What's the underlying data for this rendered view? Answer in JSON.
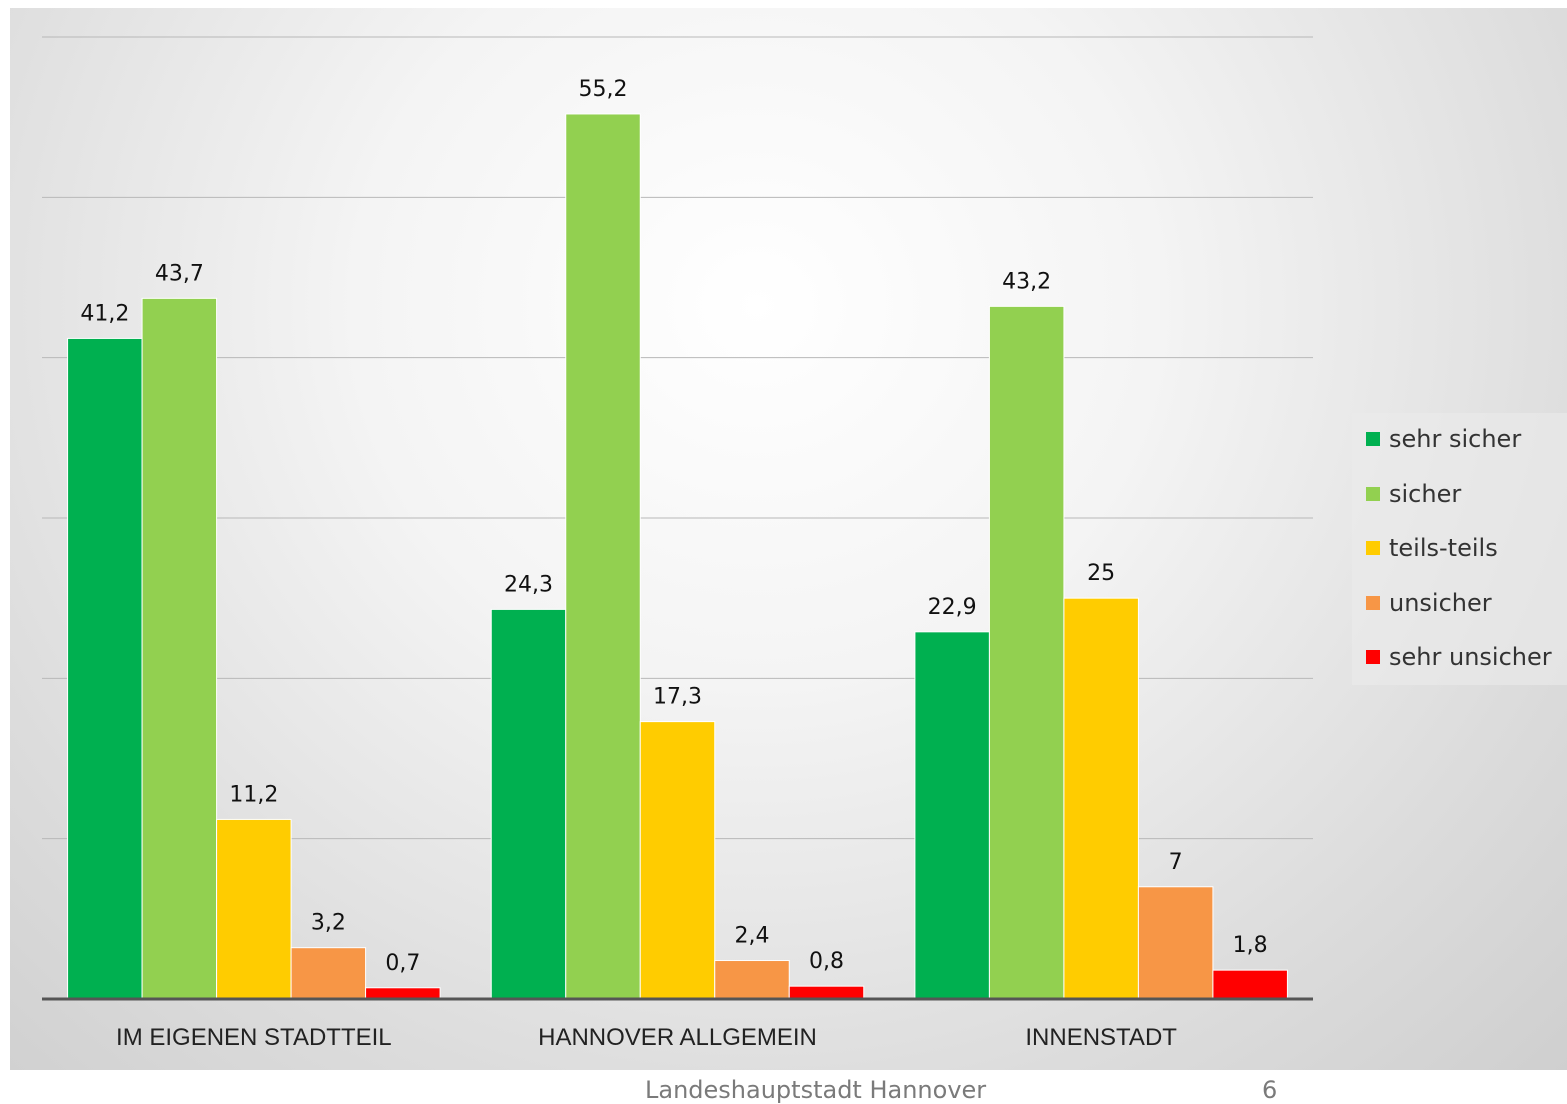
{
  "chart_data": {
    "type": "bar",
    "categories": [
      "IM EIGENEN STADTTEIL",
      "HANNOVER ALLGEMEIN",
      "INNENSTADT"
    ],
    "series": [
      {
        "name": "sehr sicher",
        "color": "#00b050",
        "values": [
          41.2,
          24.3,
          22.9
        ],
        "labels": [
          "41,2",
          "24,3",
          "22,9"
        ]
      },
      {
        "name": "sicher",
        "color": "#92d050",
        "values": [
          43.7,
          55.2,
          43.2
        ],
        "labels": [
          "43,7",
          "55,2",
          "43,2"
        ]
      },
      {
        "name": "teils-teils",
        "color": "#ffcc00",
        "values": [
          11.2,
          17.3,
          25
        ],
        "labels": [
          "11,2",
          "17,3",
          "25"
        ]
      },
      {
        "name": "unsicher",
        "color": "#f79646",
        "values": [
          3.2,
          2.4,
          7
        ],
        "labels": [
          "3,2",
          "2,4",
          "7"
        ]
      },
      {
        "name": "sehr unsicher",
        "color": "#ff0000",
        "values": [
          0.7,
          0.8,
          1.8
        ],
        "labels": [
          "0,7",
          "0,8",
          "1,8"
        ]
      }
    ],
    "ylim": [
      0,
      60
    ],
    "grid": true,
    "legend_position": "right"
  },
  "footer": {
    "text": "Landeshauptstadt Hannover",
    "page_number": "6"
  }
}
